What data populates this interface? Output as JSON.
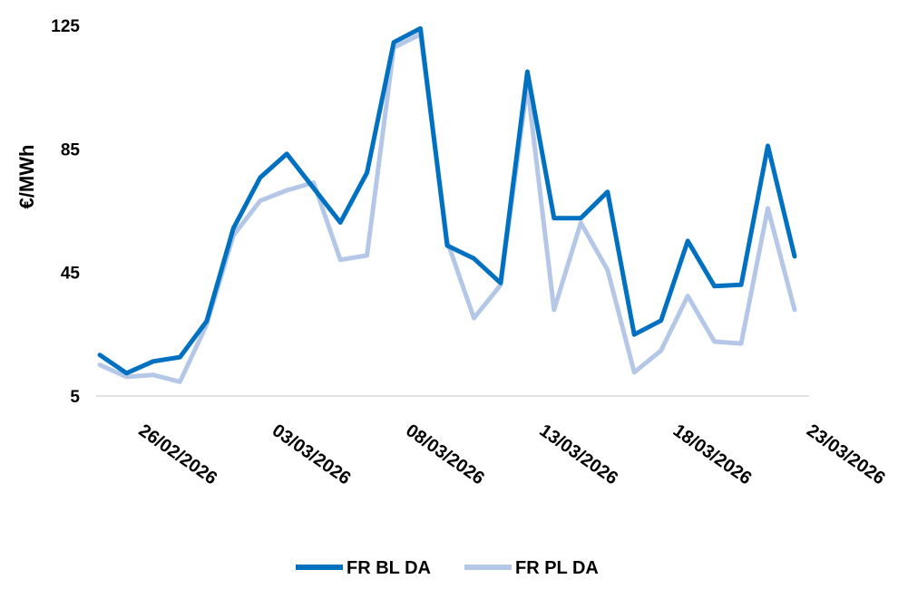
{
  "chart_data": {
    "type": "line",
    "ylabel": "€/MWh",
    "xlabel": "",
    "ylim": [
      5,
      125
    ],
    "yticks": [
      "5",
      "45",
      "85",
      "125"
    ],
    "xtick_labels": [
      "26/02/2026",
      "03/03/2026",
      "08/03/2026",
      "13/03/2026",
      "18/03/2026",
      "23/03/2026"
    ],
    "x": [
      "25/02/2026",
      "26/02/2026",
      "27/02/2026",
      "28/02/2026",
      "01/03/2026",
      "02/03/2026",
      "03/03/2026",
      "04/03/2026",
      "05/03/2026",
      "06/03/2026",
      "07/03/2026",
      "08/03/2026",
      "09/03/2026",
      "10/03/2026",
      "11/03/2026",
      "12/03/2026",
      "13/03/2026",
      "14/03/2026",
      "15/03/2026",
      "16/03/2026",
      "17/03/2026",
      "18/03/2026",
      "19/03/2026",
      "20/03/2026",
      "21/03/2026",
      "22/03/2026",
      "23/03/2026"
    ],
    "series": [
      {
        "name": "FR BL DA",
        "color": "#0070C0",
        "values": [
          18.3,
          12.4,
          16.2,
          17.6,
          29.2,
          59.3,
          75.7,
          83.4,
          72.3,
          61.2,
          77.3,
          119.5,
          124.0,
          53.7,
          49.5,
          41.6,
          110.0,
          62.6,
          62.6,
          71.1,
          24.9,
          29.4,
          55.2,
          40.6,
          41.0,
          86.0,
          50.2
        ]
      },
      {
        "name": "FR PL DA",
        "color": "#B4C7E7",
        "values": [
          15.1,
          11.2,
          11.8,
          9.6,
          28.1,
          57.0,
          68.2,
          71.6,
          74.1,
          49.1,
          50.5,
          117.8,
          122.1,
          55.1,
          30.2,
          40.9,
          105.7,
          32.9,
          61.1,
          45.8,
          12.7,
          19.7,
          37.4,
          22.6,
          22.0,
          65.8,
          32.9
        ]
      }
    ],
    "grid": false,
    "legend_position": "bottom"
  }
}
